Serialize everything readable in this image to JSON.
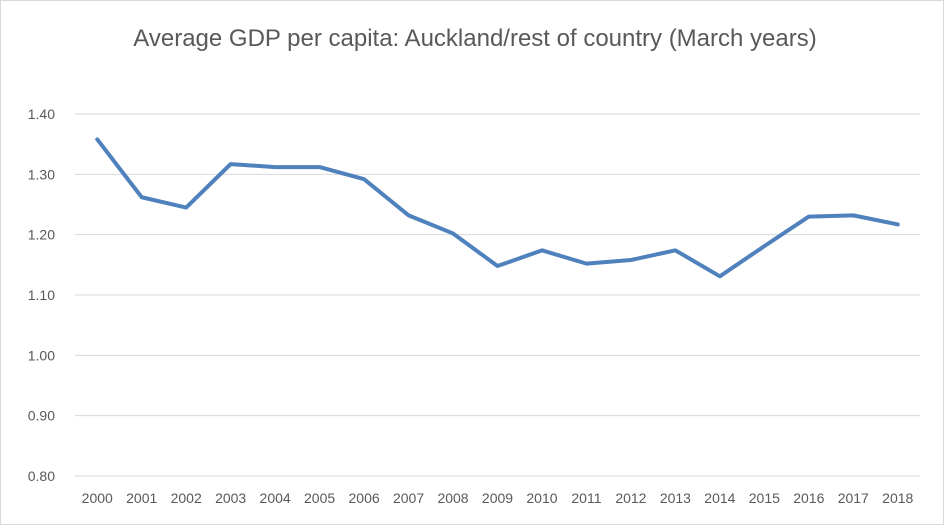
{
  "chart_data": {
    "type": "line",
    "title": "Average GDP per capita: Auckland/rest of country (March years)",
    "xlabel": "",
    "ylabel": "",
    "categories": [
      "2000",
      "2001",
      "2002",
      "2003",
      "2004",
      "2005",
      "2006",
      "2007",
      "2008",
      "2009",
      "2010",
      "2011",
      "2012",
      "2013",
      "2014",
      "2015",
      "2016",
      "2017",
      "2018"
    ],
    "series": [
      {
        "values": [
          1.358,
          1.262,
          1.245,
          1.317,
          1.312,
          1.312,
          1.292,
          1.232,
          1.202,
          1.148,
          1.174,
          1.152,
          1.158,
          1.174,
          1.131,
          1.181,
          1.23,
          1.232,
          1.217
        ],
        "color": "#4f81bd"
      }
    ],
    "yticks": [
      "0.80",
      "0.90",
      "1.00",
      "1.10",
      "1.20",
      "1.30",
      "1.40"
    ],
    "ylim": [
      0.8,
      1.4
    ],
    "grid": true,
    "legend": "none"
  }
}
